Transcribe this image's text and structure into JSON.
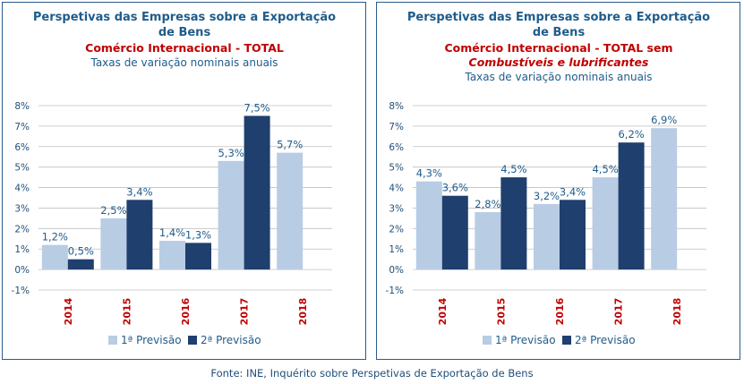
{
  "source": "Fonte: INE, Inquérito sobre Perspetivas de Exportação de Bens",
  "colors": {
    "title": "#1f5c8b",
    "subtitle": "#c00000",
    "series1": "#b8cce4",
    "series2": "#1f3f6e",
    "category": "#c00000",
    "axis_text": "#1f4e79",
    "grid": "#bfbfbf"
  },
  "chart_data": [
    {
      "type": "bar",
      "title_line1": "Perspetivas das Empresas sobre a Exportação",
      "title_line2": "de Bens",
      "subtitle_lines": [
        "Comércio Internacional  - TOTAL"
      ],
      "note": "Taxas de variação nominais anuais",
      "categories": [
        "2014",
        "2015",
        "2016",
        "2017",
        "2018"
      ],
      "y_ticks": [
        "8%",
        "7%",
        "6%",
        "5%",
        "4%",
        "3%",
        "2%",
        "1%",
        "0%",
        "-1%"
      ],
      "ylim": [
        -1,
        8
      ],
      "series": [
        {
          "name": "1ª Previsão",
          "values": [
            1.2,
            2.5,
            1.4,
            5.3,
            5.7
          ],
          "labels": [
            "1,2%",
            "2,5%",
            "1,4%",
            "5,3%",
            "5,7%"
          ]
        },
        {
          "name": "2ª Previsão",
          "values": [
            0.5,
            3.4,
            1.3,
            7.5,
            null
          ],
          "labels": [
            "0,5%",
            "3,4%",
            "1,3%",
            "7,5%",
            null
          ]
        }
      ]
    },
    {
      "type": "bar",
      "title_line1": "Perspetivas das Empresas sobre a Exportação",
      "title_line2": "de Bens",
      "subtitle_lines": [
        "Comércio Internacional  - TOTAL sem",
        "Combustíveis e lubrificantes"
      ],
      "note": "Taxas de variação nominais anuais",
      "categories": [
        "2014",
        "2015",
        "2016",
        "2017",
        "2018"
      ],
      "y_ticks": [
        "8%",
        "7%",
        "6%",
        "5%",
        "4%",
        "3%",
        "2%",
        "1%",
        "0%",
        "-1%"
      ],
      "ylim": [
        -1,
        8
      ],
      "series": [
        {
          "name": "1ª Previsão",
          "values": [
            4.3,
            2.8,
            3.2,
            4.5,
            6.9
          ],
          "labels": [
            "4,3%",
            "2,8%",
            "3,2%",
            "4,5%",
            "6,9%"
          ]
        },
        {
          "name": "2ª Previsão",
          "values": [
            3.6,
            4.5,
            3.4,
            6.2,
            null
          ],
          "labels": [
            "3,6%",
            "4,5%",
            "3,4%",
            "6,2%",
            null
          ]
        }
      ]
    }
  ]
}
